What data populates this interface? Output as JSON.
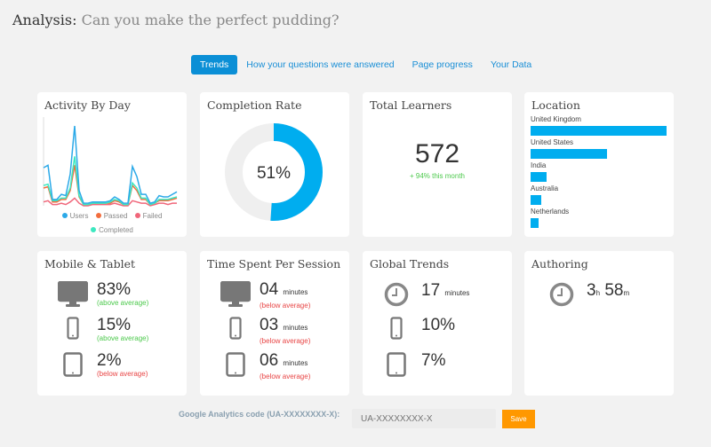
{
  "header": {
    "title_prefix": "Analysis:",
    "title": "Can you make the perfect pudding?"
  },
  "tabs": [
    {
      "label": "Trends",
      "active": true
    },
    {
      "label": "How your questions were answered"
    },
    {
      "label": "Page progress"
    },
    {
      "label": "Your Data"
    }
  ],
  "activity": {
    "title": "Activity By Day",
    "chart_data": {
      "type": "line",
      "series": [
        {
          "name": "Users",
          "color": "#2ba9e8",
          "values": [
            30,
            32,
            5,
            5,
            9,
            8,
            25,
            63,
            12,
            2,
            2,
            3,
            3,
            3,
            3,
            4,
            7,
            5,
            2,
            2,
            31,
            23,
            9,
            9,
            2,
            3,
            8,
            7,
            7,
            9,
            11
          ]
        },
        {
          "name": "Passed",
          "color": "#f26d3d",
          "values": [
            14,
            15,
            3,
            3,
            5,
            5,
            12,
            32,
            7,
            1,
            1,
            2,
            2,
            2,
            2,
            2,
            4,
            3,
            1,
            1,
            16,
            12,
            5,
            5,
            1,
            2,
            4,
            4,
            4,
            5,
            6
          ]
        },
        {
          "name": "Failed",
          "color": "#f0667a",
          "values": [
            3,
            4,
            1,
            1,
            2,
            1,
            3,
            6,
            2,
            0,
            0,
            1,
            1,
            1,
            1,
            1,
            2,
            1,
            0,
            0,
            4,
            3,
            2,
            2,
            0,
            1,
            2,
            2,
            1,
            2,
            2
          ]
        },
        {
          "name": "Completed",
          "color": "#3de8c0",
          "values": [
            16,
            17,
            4,
            4,
            6,
            6,
            14,
            39,
            8,
            1,
            1,
            2,
            2,
            2,
            2,
            3,
            5,
            4,
            1,
            1,
            18,
            14,
            6,
            6,
            1,
            2,
            5,
            5,
            5,
            6,
            7
          ]
        }
      ]
    }
  },
  "completion": {
    "title": "Completion Rate",
    "value": "51%",
    "percent": 51,
    "color": "#00adef",
    "track": "#efefef"
  },
  "learners": {
    "title": "Total Learners",
    "value": "572",
    "change": "+  94% this month"
  },
  "location": {
    "title": "Location",
    "items": [
      {
        "label": "United Kingdom",
        "relative": 100
      },
      {
        "label": "United States",
        "relative": 56
      },
      {
        "label": "India",
        "relative": 12
      },
      {
        "label": "Australia",
        "relative": 8
      },
      {
        "label": "Netherlands",
        "relative": 6
      }
    ]
  },
  "mobile": {
    "title": "Mobile & Tablet",
    "rows": [
      {
        "icon": "desktop-icon",
        "value": "83%",
        "note": "(above average)",
        "status": "good"
      },
      {
        "icon": "phone-icon",
        "value": "15%",
        "note": "(above average)",
        "status": "good"
      },
      {
        "icon": "tablet-icon",
        "value": "2%",
        "note": "(below average)",
        "status": "bad"
      }
    ]
  },
  "time": {
    "title": "Time Spent Per Session",
    "unit": "minutes",
    "rows": [
      {
        "icon": "desktop-icon",
        "value": "04",
        "note": "(below average)"
      },
      {
        "icon": "phone-icon",
        "value": "03",
        "note": "(below average)"
      },
      {
        "icon": "tablet-icon",
        "value": "06",
        "note": "(below average)"
      }
    ]
  },
  "global": {
    "title": "Global Trends",
    "minutes": "17",
    "minutes_unit": "minutes",
    "phone": "10%",
    "tablet": "7%"
  },
  "authoring": {
    "title": "Authoring",
    "hours": "3",
    "h": "h",
    "minutes": "58",
    "m": "m"
  },
  "footer": {
    "ga_label": "Google Analytics code (UA-XXXXXXXX-X):",
    "ga_placeholder": "UA-XXXXXXXX-X",
    "save": "Save"
  }
}
